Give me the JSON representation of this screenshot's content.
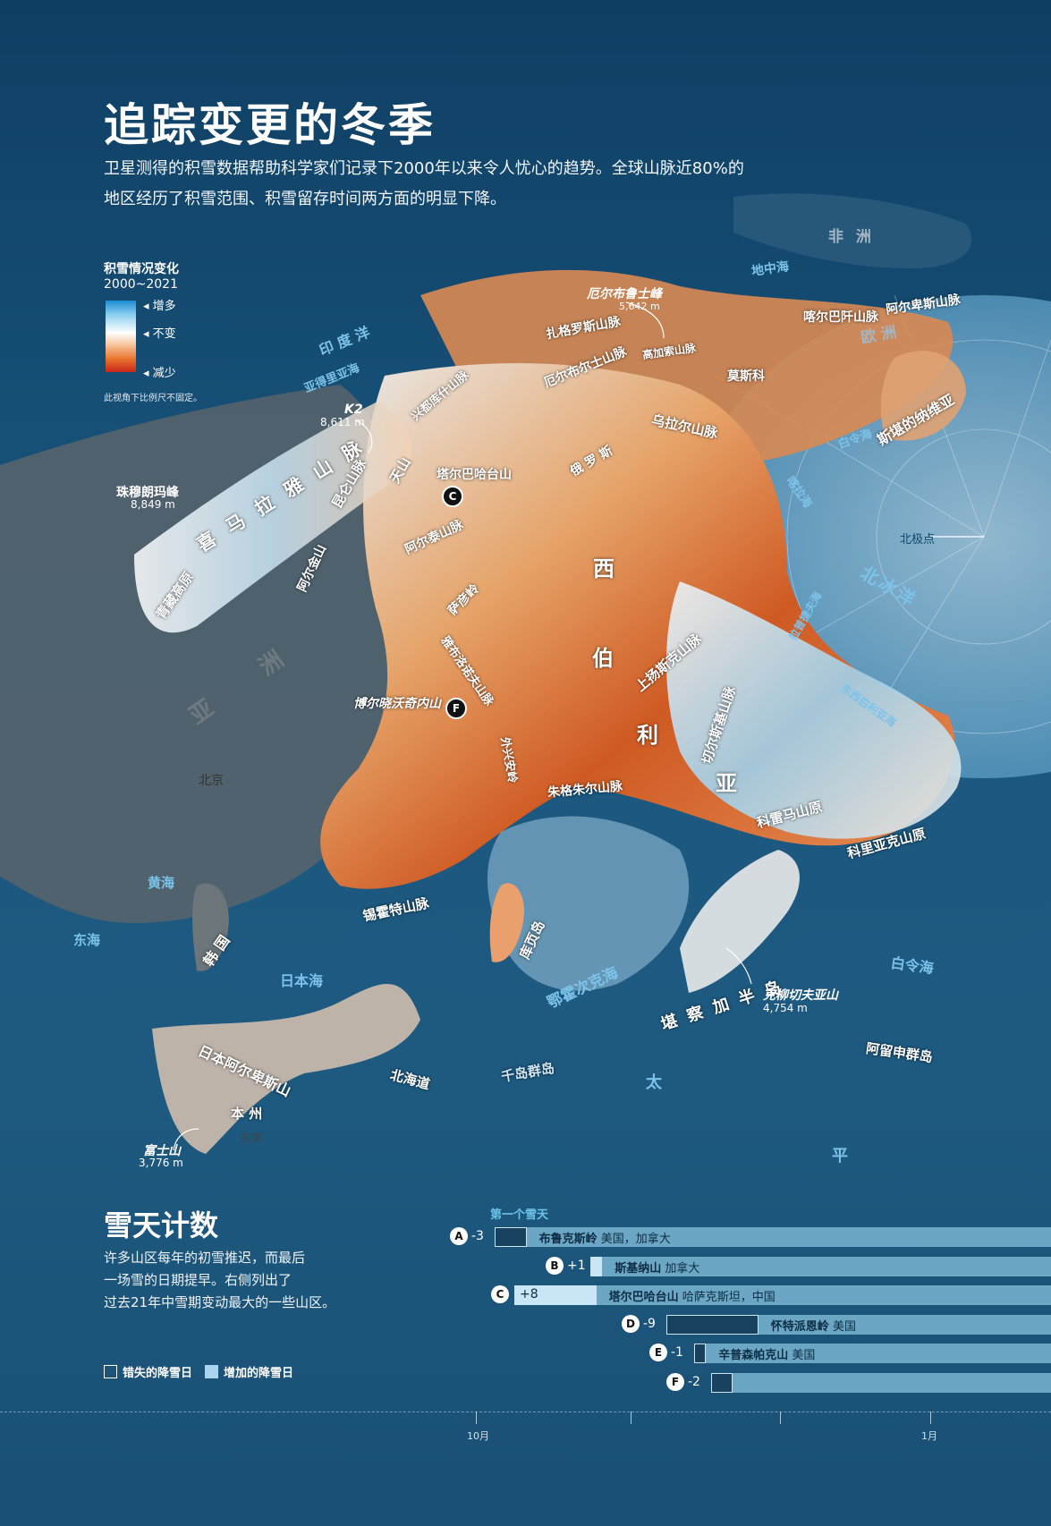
{
  "header": {
    "title": "追踪变更的冬季",
    "intro_line1": "卫星测得的积雪数据帮助科学家们记录下2000年以来令人忧心的趋势。全球山脉近80%的",
    "intro_line2": "地区经历了积雪范围、积雪留存时间两方面的明显下降。"
  },
  "legend": {
    "title": "积雪情况变化",
    "years": "2000~2021",
    "more": "增多",
    "same": "不变",
    "less": "减少",
    "note": "此视角下比例尺不固定。"
  },
  "map": {
    "continents": {
      "africa": "非 洲",
      "europe": "欧 洲",
      "asia": "亚 洲"
    },
    "seas": {
      "mediterranean": "地中海",
      "indian_ocean": "印 度 洋",
      "arabian_sea": "亚得里亚海",
      "white_sea_n": "白令海",
      "kara": "喀拉海",
      "arctic": "北冰洋",
      "laptev": "拉普捷夫海",
      "east_siberian": "东西伯利亚海",
      "yellow": "黄海",
      "east": "东海",
      "japan": "日本海",
      "okhotsk": "鄂霍次克海",
      "bering_s": "白令海",
      "pacific_1": "太",
      "pacific_2": "平"
    },
    "labels": {
      "elbrus": "厄尔布鲁士峰",
      "elbrus_h": "5,642 m",
      "zagros": "扎格罗斯山脉",
      "alborz": "厄尔布尔士山脉",
      "caucasus": "高加索山脉",
      "carpathian": "喀尔巴阡山脉",
      "alps": "阿尔卑斯山脉",
      "moscow": "莫斯科",
      "scandes": "斯堪的纳维亚",
      "ural": "乌拉尔山脉",
      "hindukush": "兴都库什山脉",
      "k2": "K2",
      "k2_h": "8,611 m",
      "everest": "珠穆朗玛峰",
      "everest_h": "8,849 m",
      "himalaya": "喜 马 拉 雅 山 脉",
      "kunlun": "昆仑山脉",
      "tianshan": "天山",
      "tarbagatai": "塔尔巴哈台山",
      "altai": "阿尔泰山脉",
      "altun": "阿尔金山",
      "tibet": "青藏高原",
      "russia": "俄 罗 斯",
      "siberia_1": "西",
      "siberia_2": "伯",
      "siberia_3": "利",
      "siberia_4": "亚",
      "sayan": "萨彦岭",
      "yablonovy": "雅布洛诺夫山脉",
      "verkhoyansk": "上扬斯克山脉",
      "chersky": "切尔斯基山脉",
      "stanovoy": "外兴安岭",
      "dzhugdzhur": "朱格朱尔山脉",
      "bogd": "博尔晓沃奇内山",
      "kolyma": "科雷马山原",
      "koryak": "科里亚克山原",
      "northpole": "北极点",
      "beijing": "北京",
      "sikhote": "锡霍特山脉",
      "korea": "韩 国",
      "sakhalin": "库页岛",
      "kamchatka": "堪 察 加 半 岛",
      "klyuchevskaya": "克柳切夫亚山",
      "klyuchevskaya_h": "4,754 m",
      "kuril": "千岛群岛",
      "aleutian": "阿留申群岛",
      "hokkaido": "北海道",
      "japanese_alps": "日本阿尔卑斯山",
      "honshu": "本 州",
      "fuji": "富士山",
      "fuji_h": "3,776 m",
      "tokyo": "东京"
    },
    "pins": {
      "c": "C",
      "f": "F"
    }
  },
  "snow_days": {
    "title": "雪天计数",
    "body_1": "许多山区每年的初雪推迟，而最后",
    "body_2": "一场雪的日期提早。右侧列出了",
    "body_3": "过去21年中雪期变动最大的一些山区。",
    "legend_missed": "错失的降雪日",
    "legend_added": "增加的降雪日",
    "series_label": "第一个雪天",
    "axis_labels": [
      "10月",
      "1月"
    ]
  },
  "chart_data": {
    "type": "bar",
    "series_label": "第一个雪天",
    "rows": [
      {
        "key": "A",
        "change": -3,
        "label": "-3",
        "name": "布鲁克斯岭",
        "region": "美国，加拿大"
      },
      {
        "key": "B",
        "change": 1,
        "label": "+1",
        "name": "斯基纳山",
        "region": "加拿大"
      },
      {
        "key": "C",
        "change": 8,
        "label": "+8",
        "name": "塔尔巴哈台山",
        "region": "哈萨克斯坦，中国"
      },
      {
        "key": "D",
        "change": -9,
        "label": "-9",
        "name": "怀特派恩岭",
        "region": "美国"
      },
      {
        "key": "E",
        "change": -1,
        "label": "-1",
        "name": "辛普森帕克山",
        "region": "美国"
      },
      {
        "key": "F",
        "change": -2,
        "label": "-2",
        "name": "",
        "region": ""
      }
    ],
    "x_axis_ticks": [
      "10月",
      "1月"
    ]
  }
}
